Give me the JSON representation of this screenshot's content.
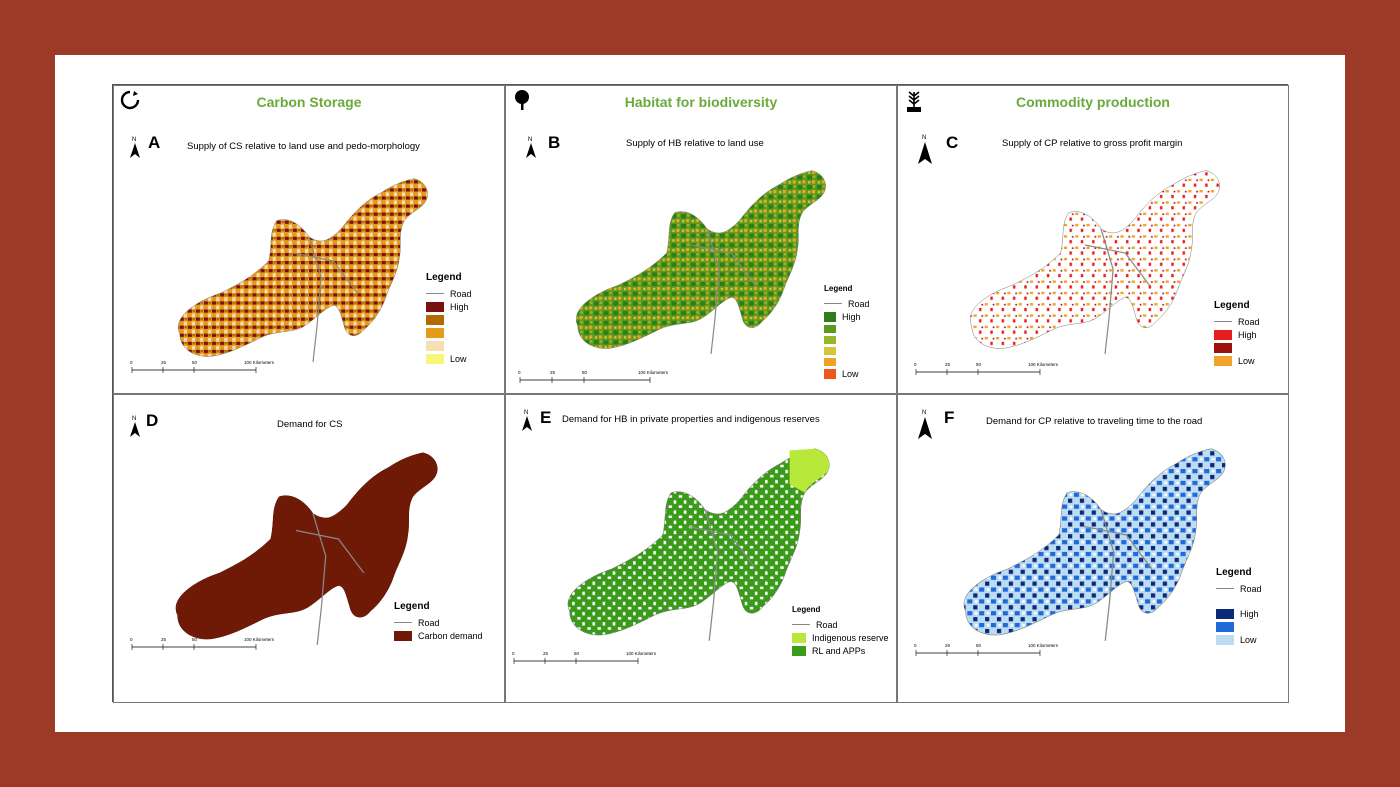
{
  "panels": {
    "A": {
      "header": "Carbon Storage",
      "letter": "A",
      "title": "Supply of CS relative to land use and pedo-morphology",
      "legend": {
        "title": "Legend",
        "road": "Road",
        "items": [
          "High",
          "",
          "",
          "",
          "Low"
        ],
        "colors": [
          "#7a1010",
          "#b36a00",
          "#e69a1a",
          "#f6dfb0",
          "#f7f57a"
        ]
      }
    },
    "B": {
      "header": "Habitat for biodiversity",
      "letter": "B",
      "title": "Supply of HB relative to land use",
      "legend": {
        "title": "Legend",
        "road": "Road",
        "items": [
          "High",
          "",
          "",
          "",
          "",
          "Low"
        ],
        "colors": [
          "#2f7d1a",
          "#5a9a1e",
          "#97b82a",
          "#d6c53a",
          "#f0a323",
          "#ec5a1a"
        ]
      }
    },
    "C": {
      "header": "Commodity production",
      "letter": "C",
      "title": "Supply of CP relative to gross profit margin",
      "legend": {
        "title": "Legend",
        "road": "Road",
        "items": [
          "High",
          "",
          "Low"
        ],
        "colors": [
          "#e81c1c",
          "#9e1010",
          "#f0a42a"
        ]
      }
    },
    "D": {
      "letter": "D",
      "title": "Demand for CS",
      "legend": {
        "title": "Legend",
        "road": "Road",
        "items": [
          "Carbon demand"
        ],
        "colors": [
          "#6e1a06"
        ]
      }
    },
    "E": {
      "letter": "E",
      "title": "Demand for HB in private properties and indigenous reserves",
      "legend": {
        "title": "Legend",
        "road": "Road",
        "items": [
          "Indigenous reserve",
          "RL and APPs"
        ],
        "colors": [
          "#b7e83a",
          "#3a9a1a"
        ]
      }
    },
    "F": {
      "letter": "F",
      "title": "Demand for CP relative to traveling time to the road",
      "legend": {
        "title": "Legend",
        "road": "Road",
        "items": [
          "High",
          "",
          "Low"
        ],
        "colors": [
          "#0c2a78",
          "#1f6ad8",
          "#bcdcf3"
        ]
      }
    }
  },
  "north_label": "N",
  "scale": {
    "ticks": [
      "0",
      "25",
      "50",
      "100 Kilometers"
    ]
  },
  "icons": {
    "A": "cycle-icon",
    "B": "tree-icon",
    "C": "wheat-icon"
  }
}
